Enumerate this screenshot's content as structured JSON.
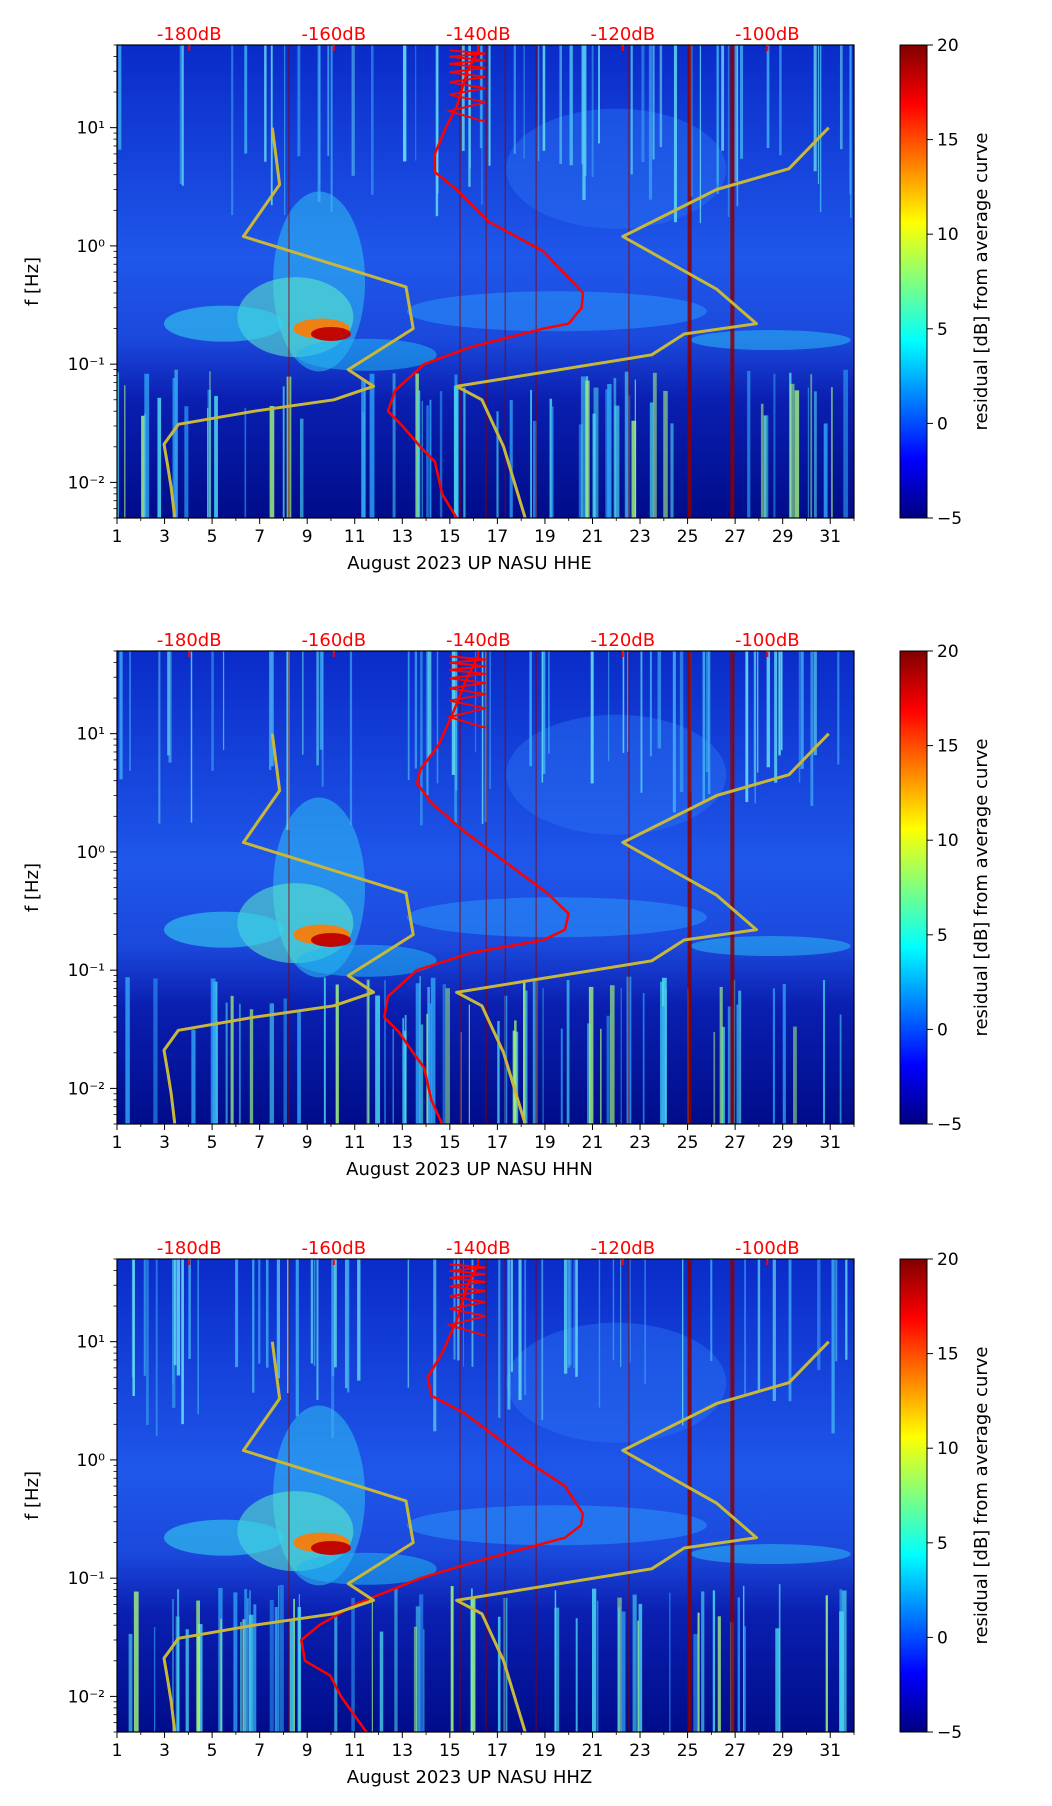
{
  "colors": {
    "accent_red": "#ff0000",
    "reference_curve": "#c8b83a",
    "background_noise": "#1a3fd8"
  },
  "colormap": [
    "#00007f",
    "#0000ff",
    "#007fff",
    "#00ffff",
    "#7fff7f",
    "#ffff00",
    "#ff7f00",
    "#ff0000",
    "#7f0000"
  ],
  "chart_data": [
    {
      "type": "heatmap",
      "title": "",
      "xlabel": "August 2023 UP NASU  HHE",
      "ylabel": "f [Hz]",
      "xlim": [
        1,
        32
      ],
      "ylim": [
        0.005,
        50
      ],
      "yscale": "log",
      "x_ticks": [
        "1",
        "3",
        "5",
        "7",
        "9",
        "11",
        "13",
        "15",
        "17",
        "19",
        "21",
        "23",
        "25",
        "27",
        "29",
        "31"
      ],
      "y_ticks": [
        "10⁻²",
        "10⁻¹",
        "10⁰",
        "10¹"
      ],
      "colorbar": {
        "label": "residual [dB] from average curve",
        "range": [
          -5,
          20
        ],
        "ticks": [
          "−5",
          "0",
          "5",
          "10",
          "15",
          "20"
        ]
      },
      "db_axis": {
        "ticks": [
          "-180dB",
          "-160dB",
          "-140dB",
          "-120dB",
          "-100dB"
        ],
        "values": [
          -180,
          -160,
          -140,
          -120,
          -100
        ],
        "range": [
          -190,
          -88
        ]
      },
      "overlays": [
        {
          "name": "psd-red",
          "axis": "db",
          "x": [
            -140.0,
            -141.5,
            -143.0,
            -144.5,
            -146.0,
            -146.0,
            -143.0,
            -138.5,
            -131.0,
            -125.5,
            -125.7,
            -127.5,
            -131.0,
            -141.0,
            -147.5,
            -151.5,
            -152.5,
            -150.5,
            -148.0,
            -146.0,
            -145.0,
            -143.0
          ],
          "f": [
            45,
            30,
            15,
            10,
            6,
            4.2,
            3.0,
            1.6,
            0.9,
            0.4,
            0.3,
            0.22,
            0.2,
            0.14,
            0.1,
            0.06,
            0.04,
            0.03,
            0.02,
            0.015,
            0.008,
            0.005
          ]
        },
        {
          "name": "nlnm-yellow",
          "axis": "db",
          "x": [
            -168.5,
            -167.5,
            -172.5,
            -150.0,
            -149.0,
            -153.0,
            -158.0,
            -154.5,
            -160.0,
            -171.0,
            -181.5,
            -183.5,
            -183.0,
            -182.5,
            -182.0
          ],
          "f": [
            10,
            3.3,
            1.2,
            0.45,
            0.2,
            0.14,
            0.09,
            0.065,
            0.05,
            0.04,
            0.031,
            0.021,
            0.014,
            0.009,
            0.005
          ]
        },
        {
          "name": "nhnm-yellow",
          "axis": "db",
          "x": [
            -91.5,
            -97.0,
            -107.0,
            -120.0,
            -107.0,
            -101.5,
            -111.5,
            -116.0,
            -143.0,
            -139.5,
            -136.5,
            -133.5
          ],
          "f": [
            10,
            4.5,
            3.0,
            1.2,
            0.43,
            0.22,
            0.18,
            0.12,
            0.065,
            0.05,
            0.02,
            0.005
          ]
        }
      ]
    },
    {
      "type": "heatmap",
      "title": "",
      "xlabel": "August 2023 UP NASU  HHN",
      "ylabel": "f [Hz]",
      "xlim": [
        1,
        32
      ],
      "ylim": [
        0.005,
        50
      ],
      "yscale": "log",
      "x_ticks": [
        "1",
        "3",
        "5",
        "7",
        "9",
        "11",
        "13",
        "15",
        "17",
        "19",
        "21",
        "23",
        "25",
        "27",
        "29",
        "31"
      ],
      "y_ticks": [
        "10⁻²",
        "10⁻¹",
        "10⁰",
        "10¹"
      ],
      "colorbar": {
        "label": "residual [dB] from average curve",
        "range": [
          -5,
          20
        ],
        "ticks": [
          "−5",
          "0",
          "5",
          "10",
          "15",
          "20"
        ]
      },
      "db_axis": {
        "ticks": [
          "-180dB",
          "-160dB",
          "-140dB",
          "-120dB",
          "-100dB"
        ],
        "values": [
          -180,
          -160,
          -140,
          -120,
          -100
        ],
        "range": [
          -190,
          -88
        ]
      },
      "overlays": [
        {
          "name": "psd-red",
          "axis": "db",
          "x": [
            -140.0,
            -141.5,
            -143.5,
            -145.5,
            -148.0,
            -148.5,
            -146.5,
            -142.0,
            -136.0,
            -130.5,
            -127.5,
            -128.0,
            -131.0,
            -141.0,
            -148.5,
            -152.5,
            -153.0,
            -151.0,
            -149.0,
            -147.5,
            -146.5,
            -145.0
          ],
          "f": [
            45,
            30,
            15,
            8,
            5,
            3.8,
            2.6,
            1.5,
            0.8,
            0.45,
            0.3,
            0.22,
            0.18,
            0.14,
            0.1,
            0.06,
            0.04,
            0.03,
            0.02,
            0.015,
            0.008,
            0.005
          ]
        },
        {
          "name": "nlnm-yellow",
          "axis": "db",
          "x": [
            -168.5,
            -167.5,
            -172.5,
            -150.0,
            -149.0,
            -153.0,
            -158.0,
            -154.5,
            -160.0,
            -171.0,
            -181.5,
            -183.5,
            -183.0,
            -182.5,
            -182.0
          ],
          "f": [
            10,
            3.3,
            1.2,
            0.45,
            0.2,
            0.14,
            0.09,
            0.065,
            0.05,
            0.04,
            0.031,
            0.021,
            0.014,
            0.009,
            0.005
          ]
        },
        {
          "name": "nhnm-yellow",
          "axis": "db",
          "x": [
            -91.5,
            -97.0,
            -107.0,
            -120.0,
            -107.0,
            -101.5,
            -111.5,
            -116.0,
            -143.0,
            -139.5,
            -136.5,
            -133.5
          ],
          "f": [
            10,
            4.5,
            3.0,
            1.2,
            0.43,
            0.22,
            0.18,
            0.12,
            0.065,
            0.05,
            0.02,
            0.005
          ]
        }
      ]
    },
    {
      "type": "heatmap",
      "title": "",
      "xlabel": "August 2023 UP NASU  HHZ",
      "ylabel": "f [Hz]",
      "xlim": [
        1,
        32
      ],
      "ylim": [
        0.005,
        50
      ],
      "yscale": "log",
      "x_ticks": [
        "1",
        "3",
        "5",
        "7",
        "9",
        "11",
        "13",
        "15",
        "17",
        "19",
        "21",
        "23",
        "25",
        "27",
        "29",
        "31"
      ],
      "y_ticks": [
        "10⁻²",
        "10⁻¹",
        "10⁰",
        "10¹"
      ],
      "colorbar": {
        "label": "residual [dB] from average curve",
        "range": [
          -5,
          20
        ],
        "ticks": [
          "−5",
          "0",
          "5",
          "10",
          "15",
          "20"
        ]
      },
      "db_axis": {
        "ticks": [
          "-180dB",
          "-160dB",
          "-140dB",
          "-120dB",
          "-100dB"
        ],
        "values": [
          -180,
          -160,
          -140,
          -120,
          -100
        ],
        "range": [
          -190,
          -88
        ]
      },
      "overlays": [
        {
          "name": "psd-red",
          "axis": "db",
          "x": [
            -140.0,
            -141.5,
            -143.0,
            -145.0,
            -147.0,
            -146.5,
            -142.0,
            -136.5,
            -133.5,
            -128.0,
            -125.5,
            -125.8,
            -128.0,
            -140.0,
            -148.0,
            -157.0,
            -162.0,
            -164.5,
            -164.0,
            -160.5,
            -159.0,
            -155.5
          ],
          "f": [
            45,
            30,
            15,
            8,
            5,
            3.5,
            2.5,
            1.4,
            1.0,
            0.6,
            0.35,
            0.28,
            0.22,
            0.14,
            0.1,
            0.06,
            0.04,
            0.03,
            0.02,
            0.015,
            0.01,
            0.005
          ]
        },
        {
          "name": "nlnm-yellow",
          "axis": "db",
          "x": [
            -168.5,
            -167.5,
            -172.5,
            -150.0,
            -149.0,
            -153.0,
            -158.0,
            -154.5,
            -160.0,
            -171.0,
            -181.5,
            -183.5,
            -183.0,
            -182.5,
            -182.0
          ],
          "f": [
            10,
            3.3,
            1.2,
            0.45,
            0.2,
            0.14,
            0.09,
            0.065,
            0.05,
            0.04,
            0.031,
            0.021,
            0.014,
            0.009,
            0.005
          ]
        },
        {
          "name": "nhnm-yellow",
          "axis": "db",
          "x": [
            -91.5,
            -97.0,
            -107.0,
            -120.0,
            -107.0,
            -101.5,
            -111.5,
            -116.0,
            -143.0,
            -139.5,
            -136.5,
            -133.5
          ],
          "f": [
            10,
            4.5,
            3.0,
            1.2,
            0.43,
            0.22,
            0.18,
            0.12,
            0.065,
            0.05,
            0.02,
            0.005
          ]
        }
      ]
    }
  ]
}
